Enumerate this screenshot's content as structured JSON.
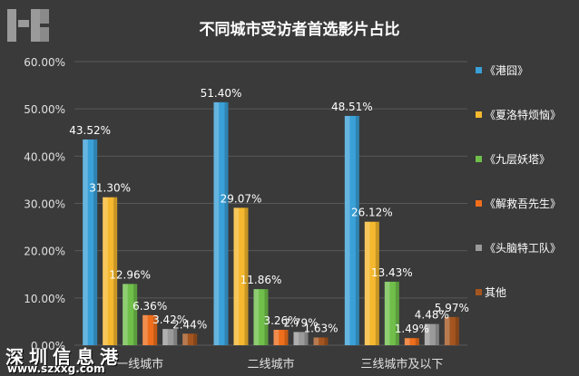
{
  "watermark": {
    "cn": "深圳信息港",
    "url": "www.szxxg.com"
  },
  "colors": {
    "background": "#3a3a3a",
    "grid": "#595959",
    "text": "#ffffff",
    "axis_text": "#e0e0e0"
  },
  "chart_data": {
    "type": "bar",
    "title": "不同城市受访者首选影片占比",
    "xlabel": "",
    "ylabel": "",
    "ylim": [
      0,
      60
    ],
    "y_ticks": [
      "0.00%",
      "10.00%",
      "20.00%",
      "30.00%",
      "40.00%",
      "50.00%",
      "60.00%"
    ],
    "grid": true,
    "legend_position": "right",
    "categories": [
      "一线城市",
      "二线城市",
      "三线城市及以下"
    ],
    "series": [
      {
        "name": "《港囧》",
        "color": "#3aa0d8",
        "values": [
          43.52,
          51.4,
          48.51
        ],
        "labels": [
          "43.52%",
          "51.40%",
          "48.51%"
        ]
      },
      {
        "name": "《夏洛特烦恼》",
        "color": "#f5b82e",
        "values": [
          31.3,
          29.07,
          26.12
        ],
        "labels": [
          "31.30%",
          "29.07%",
          "26.12%"
        ]
      },
      {
        "name": "《九层妖塔》",
        "color": "#6fbf4a",
        "values": [
          12.96,
          11.86,
          13.43
        ],
        "labels": [
          "12.96%",
          "11.86%",
          "13.43%"
        ]
      },
      {
        "name": "《解救吾先生》",
        "color": "#ee6e1c",
        "values": [
          6.36,
          3.26,
          1.49
        ],
        "labels": [
          "6.36%",
          "3.26%",
          "1.49%"
        ]
      },
      {
        "name": "《头脑特工队》",
        "color": "#9a9a9a",
        "values": [
          3.42,
          2.79,
          4.48
        ],
        "labels": [
          "3.42%",
          "2.79%",
          "4.48%"
        ]
      },
      {
        "name": "其他",
        "color": "#a4551f",
        "values": [
          2.44,
          1.63,
          5.97
        ],
        "labels": [
          "2.44%",
          "1.63%",
          "5.97%"
        ]
      }
    ]
  }
}
